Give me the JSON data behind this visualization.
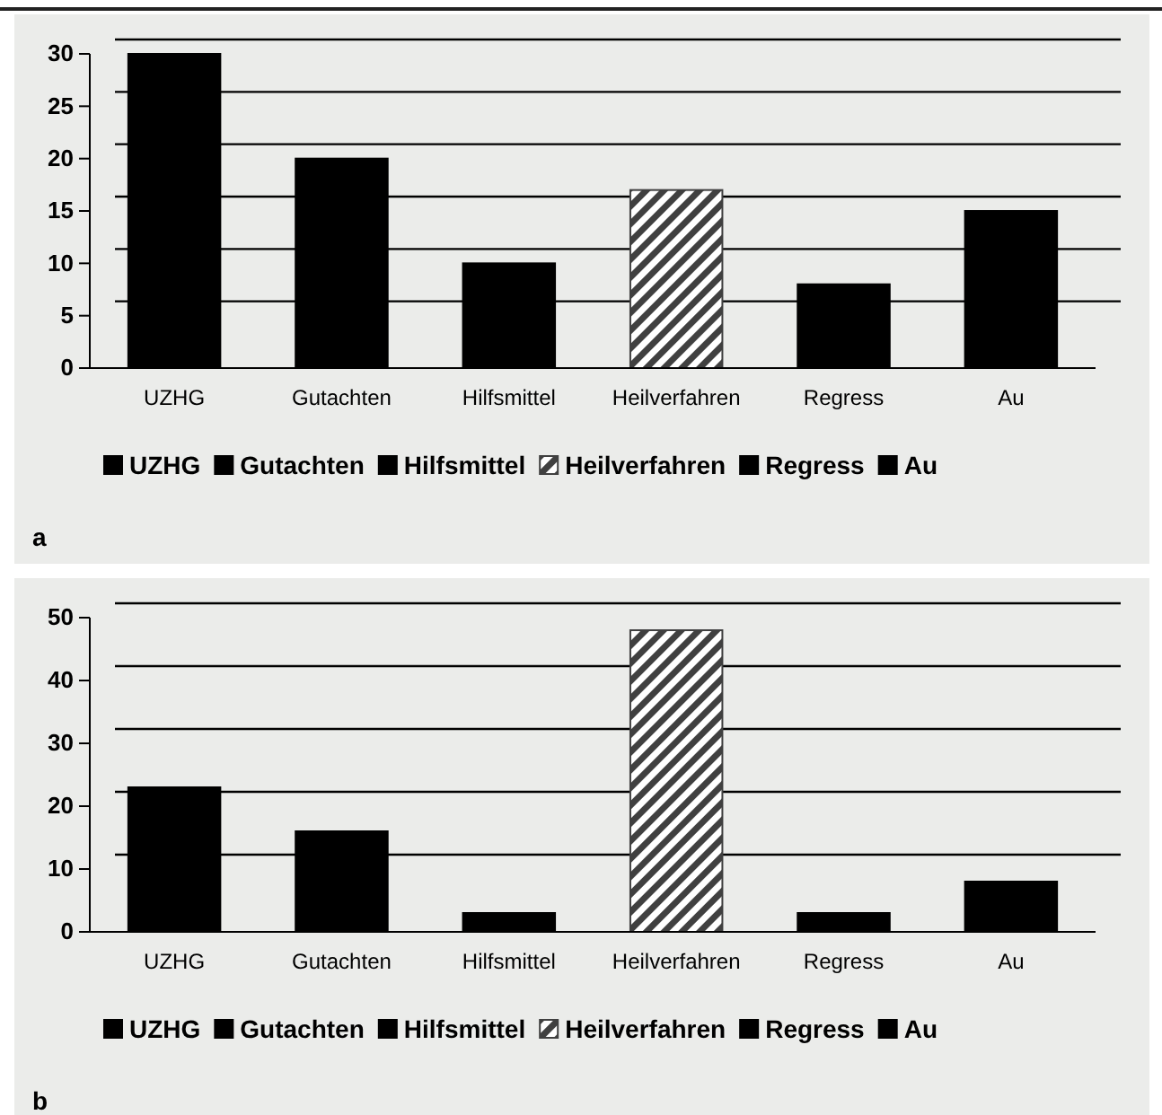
{
  "chart_data": [
    {
      "type": "bar",
      "categories": [
        "UZHG",
        "Gutachten",
        "Hilfsmittel",
        "Heilverfahren",
        "Regress",
        "Au"
      ],
      "series": [
        {
          "name": "UZHG",
          "color": "#000000",
          "values": [
            30,
            null,
            null,
            null,
            null,
            null
          ]
        },
        {
          "name": "Gutachten",
          "color": "#000000",
          "values": [
            null,
            20,
            null,
            null,
            null,
            null
          ]
        },
        {
          "name": "Hilfsmittel",
          "color": "#000000",
          "values": [
            null,
            null,
            10,
            null,
            null,
            null
          ]
        },
        {
          "name": "Heilverfahren",
          "color": "#404040",
          "values": [
            null,
            null,
            null,
            17,
            null,
            null
          ]
        },
        {
          "name": "Regress",
          "color": "#000000",
          "values": [
            null,
            null,
            null,
            null,
            8,
            null
          ]
        },
        {
          "name": "Au",
          "color": "#000000",
          "values": [
            null,
            null,
            null,
            null,
            null,
            15
          ]
        }
      ],
      "ylim": [
        0,
        30
      ],
      "yticks": [
        0,
        5,
        10,
        15,
        20,
        25,
        30
      ],
      "grid": "y",
      "legend": "bottom",
      "annotations": [
        "a"
      ]
    },
    {
      "type": "bar",
      "categories": [
        "UZHG",
        "Gutachten",
        "Hilfsmittel",
        "Heilverfahren",
        "Regress",
        "Au"
      ],
      "series": [
        {
          "name": "UZHG",
          "color": "#000000",
          "values": [
            23,
            null,
            null,
            null,
            null,
            null
          ]
        },
        {
          "name": "Gutachten",
          "color": "#000000",
          "values": [
            null,
            16,
            null,
            null,
            null,
            null
          ]
        },
        {
          "name": "Hilfsmittel",
          "color": "#000000",
          "values": [
            null,
            null,
            3,
            null,
            null,
            null
          ]
        },
        {
          "name": "Heilverfahren",
          "color": "#404040",
          "values": [
            null,
            null,
            null,
            48,
            null,
            null
          ]
        },
        {
          "name": "Regress",
          "color": "#000000",
          "values": [
            null,
            null,
            null,
            null,
            3,
            null
          ]
        },
        {
          "name": "Au",
          "color": "#000000",
          "values": [
            null,
            null,
            null,
            null,
            null,
            8
          ]
        }
      ],
      "ylim": [
        0,
        50
      ],
      "yticks": [
        0,
        10,
        20,
        30,
        40,
        50
      ],
      "grid": "y",
      "legend": "bottom",
      "annotations": [
        "b"
      ]
    }
  ]
}
